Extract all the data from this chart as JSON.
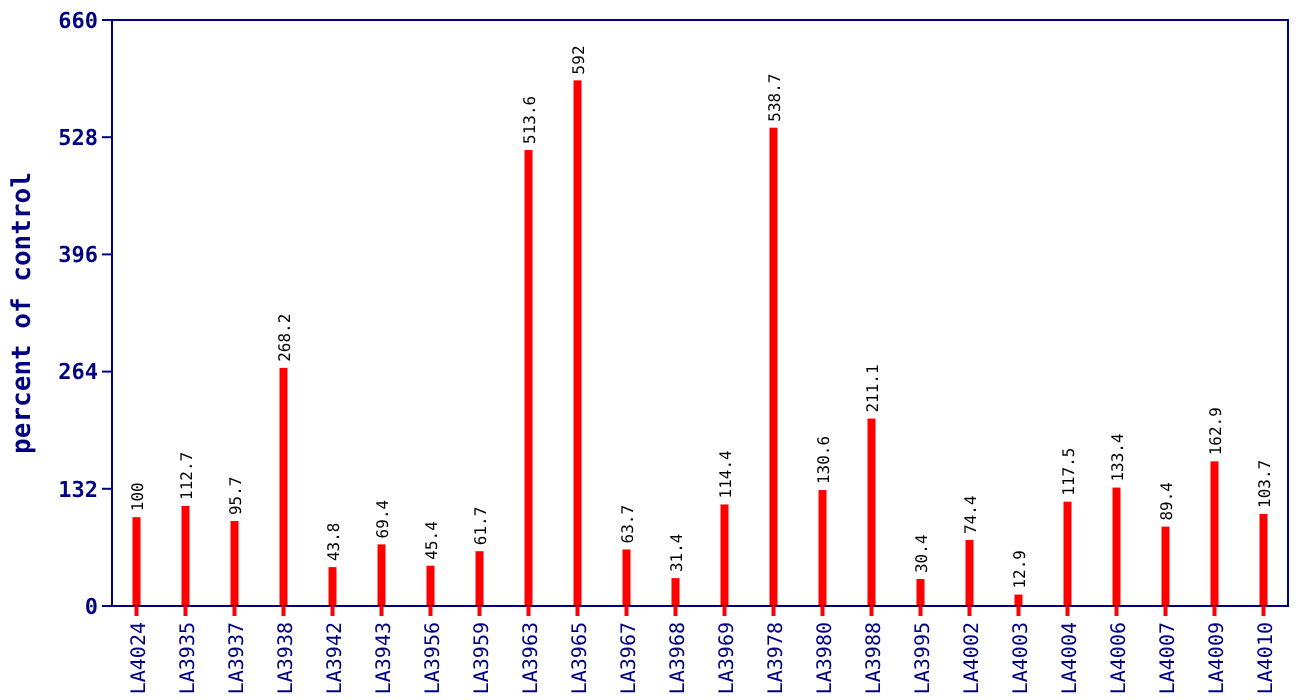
{
  "chart_data": {
    "type": "bar",
    "ylabel": "percent of control",
    "categories": [
      "LA4024",
      "LA3935",
      "LA3937",
      "LA3938",
      "LA3942",
      "LA3943",
      "LA3956",
      "LA3959",
      "LA3963",
      "LA3965",
      "LA3967",
      "LA3968",
      "LA3969",
      "LA3978",
      "LA3980",
      "LA3988",
      "LA3995",
      "LA4002",
      "LA4003",
      "LA4004",
      "LA4006",
      "LA4007",
      "LA4009",
      "LA4010"
    ],
    "values": [
      100,
      112.7,
      95.7,
      268.2,
      43.8,
      69.4,
      45.4,
      61.7,
      513.6,
      592,
      63.7,
      31.4,
      114.4,
      538.7,
      130.6,
      211.1,
      30.4,
      74.4,
      12.9,
      117.5,
      133.4,
      89.4,
      162.9,
      103.7
    ],
    "color": "#ff0000",
    "ylim": [
      0,
      660
    ],
    "yticks": [
      0,
      132,
      264,
      396,
      528,
      660
    ],
    "data_labels": true,
    "grid": false
  }
}
